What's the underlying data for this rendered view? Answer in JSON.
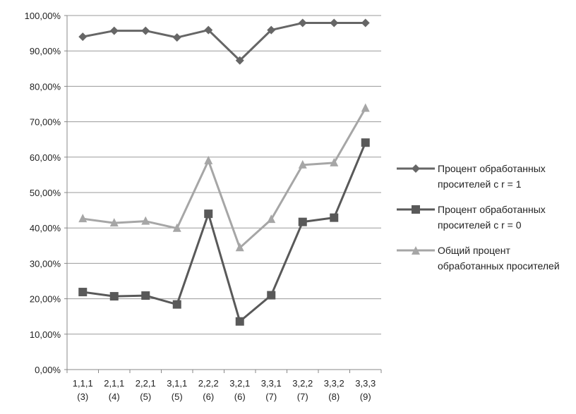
{
  "chart_data": {
    "type": "line",
    "categories": [
      [
        "1,1,1",
        "(3)"
      ],
      [
        "2,1,1",
        "(4)"
      ],
      [
        "2,2,1",
        "(5)"
      ],
      [
        "3,1,1",
        "(5)"
      ],
      [
        "2,2,2",
        "(6)"
      ],
      [
        "3,2,1",
        "(6)"
      ],
      [
        "3,3,1",
        "(7)"
      ],
      [
        "3,2,2",
        "(7)"
      ],
      [
        "3,3,2",
        "(8)"
      ],
      [
        "3,3,3",
        "(9)"
      ]
    ],
    "ylim": [
      0,
      100
    ],
    "yticks": [
      "0,00%",
      "10,00%",
      "20,00%",
      "30,00%",
      "40,00%",
      "50,00%",
      "60,00%",
      "70,00%",
      "80,00%",
      "90,00%",
      "100,00%"
    ],
    "grid": "horizontal",
    "legend_position": "right",
    "series": [
      {
        "name_lines": [
          "Процент обработанных",
          "просителей с r = 1"
        ],
        "marker": "diamond",
        "color": "#666666",
        "values": [
          94.0,
          95.7,
          95.7,
          93.8,
          95.9,
          87.3,
          95.9,
          97.9,
          97.9,
          97.9
        ]
      },
      {
        "name_lines": [
          "Процент обработанных",
          "просителей с r = 0"
        ],
        "marker": "square",
        "color": "#595959",
        "values": [
          21.9,
          20.7,
          20.9,
          18.4,
          44.0,
          13.6,
          21.0,
          41.7,
          42.9,
          64.1
        ]
      },
      {
        "name_lines": [
          "Общий процент",
          "обработанных просителей"
        ],
        "marker": "triangle",
        "color": "#a6a6a6",
        "values": [
          42.6,
          41.4,
          41.9,
          39.9,
          59.0,
          34.4,
          42.4,
          57.8,
          58.4,
          73.8
        ]
      }
    ]
  }
}
